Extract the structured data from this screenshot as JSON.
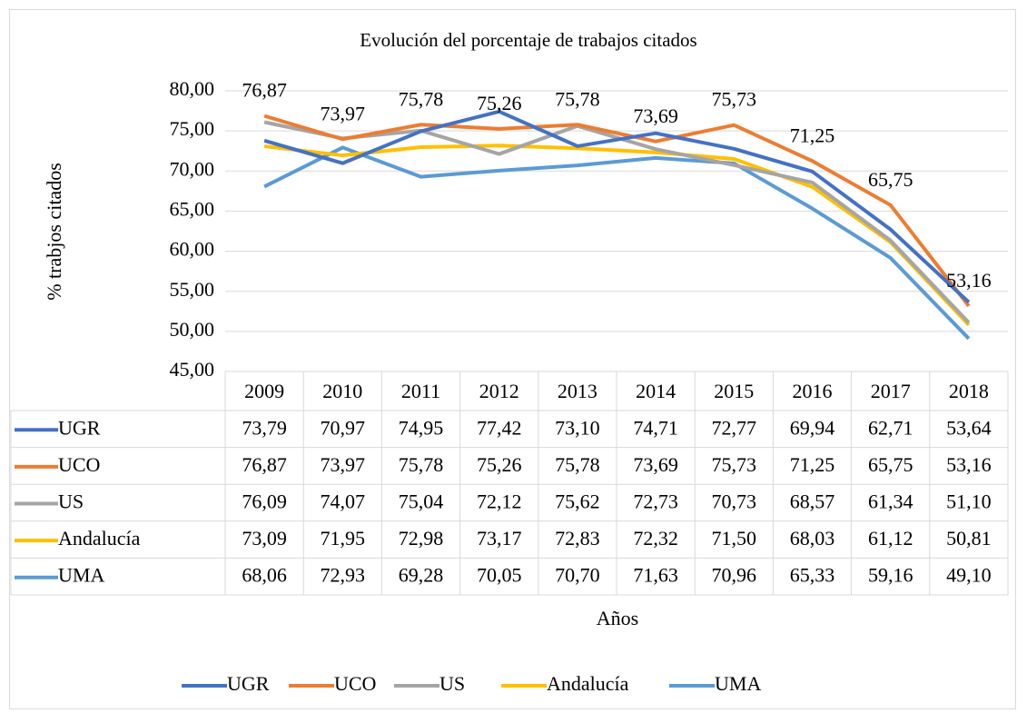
{
  "chart_data": {
    "type": "line",
    "title": "Evolución del porcentaje de trabajos citados",
    "ylabel": "% trabjos citados",
    "xlabel": "Años",
    "categories": [
      "2009",
      "2010",
      "2011",
      "2012",
      "2013",
      "2014",
      "2015",
      "2016",
      "2017",
      "2018"
    ],
    "series": [
      {
        "name": "UGR",
        "color": "#4472c4",
        "values": [
          73.79,
          70.97,
          74.95,
          77.42,
          73.1,
          74.71,
          72.77,
          69.94,
          62.71,
          53.64
        ],
        "value_labels": [
          "73,79",
          "70,97",
          "74,95",
          "77,42",
          "73,10",
          "74,71",
          "72,77",
          "69,94",
          "62,71",
          "53,64"
        ]
      },
      {
        "name": "UCO",
        "color": "#ed7d31",
        "values": [
          76.87,
          73.97,
          75.78,
          75.26,
          75.78,
          73.69,
          75.73,
          71.25,
          65.75,
          53.16
        ],
        "value_labels": [
          "76,87",
          "73,97",
          "75,78",
          "75,26",
          "75,78",
          "73,69",
          "75,73",
          "71,25",
          "65,75",
          "53,16"
        ],
        "data_labels": true
      },
      {
        "name": "US",
        "color": "#a5a5a5",
        "values": [
          76.09,
          74.07,
          75.04,
          72.12,
          75.62,
          72.73,
          70.73,
          68.57,
          61.34,
          51.1
        ],
        "value_labels": [
          "76,09",
          "74,07",
          "75,04",
          "72,12",
          "75,62",
          "72,73",
          "70,73",
          "68,57",
          "61,34",
          "51,10"
        ]
      },
      {
        "name": "Andalucía",
        "color": "#ffc000",
        "values": [
          73.09,
          71.95,
          72.98,
          73.17,
          72.83,
          72.32,
          71.5,
          68.03,
          61.12,
          50.81
        ],
        "value_labels": [
          "73,09",
          "71,95",
          "72,98",
          "73,17",
          "72,83",
          "72,32",
          "71,50",
          "68,03",
          "61,12",
          "50,81"
        ]
      },
      {
        "name": "UMA",
        "color": "#5b9bd5",
        "values": [
          68.06,
          72.93,
          69.28,
          70.05,
          70.7,
          71.63,
          70.96,
          65.33,
          59.16,
          49.1
        ],
        "value_labels": [
          "68,06",
          "72,93",
          "69,28",
          "70,05",
          "70,70",
          "71,63",
          "70,96",
          "65,33",
          "59,16",
          "49,10"
        ]
      }
    ],
    "ylim": [
      45,
      80
    ],
    "yticks": [
      {
        "value": 45,
        "label": "45,00"
      },
      {
        "value": 50,
        "label": "50,00"
      },
      {
        "value": 55,
        "label": "55,00"
      },
      {
        "value": 60,
        "label": "60,00"
      },
      {
        "value": 65,
        "label": "65,00"
      },
      {
        "value": 70,
        "label": "70,00"
      },
      {
        "value": 75,
        "label": "75,00"
      },
      {
        "value": 80,
        "label": "80,00"
      }
    ],
    "grid": true,
    "legend": "bottom",
    "data_table": true
  }
}
